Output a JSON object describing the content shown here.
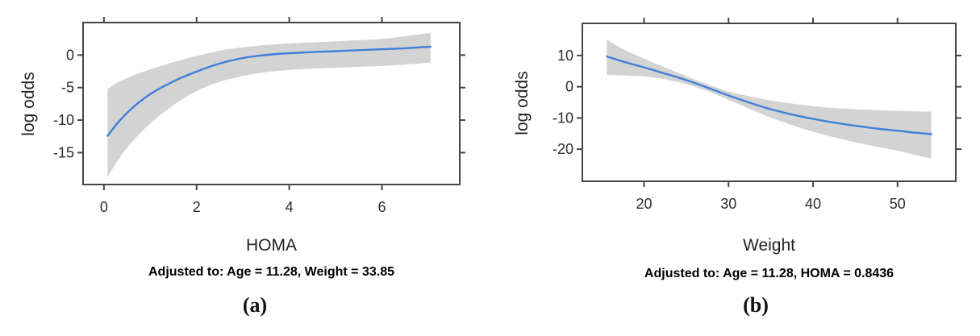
{
  "page": {
    "background": "#ffffff"
  },
  "chart_data": [
    {
      "type": "line",
      "panel_label": "(a)",
      "xlabel": "HOMA",
      "ylabel": "log odds",
      "footnote": "Adjusted to: Age = 11.28, Weight = 33.85",
      "xlim": [
        -0.45,
        7.68
      ],
      "ylim": [
        -19.9,
        5.0
      ],
      "xticks": [
        0,
        2,
        4,
        6
      ],
      "yticks": [
        0,
        -5,
        -10,
        -15
      ],
      "grid": false,
      "legend": null,
      "frame_color": "#464646",
      "series": [
        {
          "name": "log odds estimate",
          "color": "#3f80d8",
          "x": [
            0.08,
            0.3,
            0.6,
            1.0,
            1.4,
            1.8,
            2.2,
            2.6,
            3.0,
            3.4,
            3.8,
            4.2,
            4.6,
            5.0,
            5.5,
            6.0,
            6.5,
            7.05
          ],
          "y": [
            -12.4,
            -10.4,
            -8.2,
            -6.0,
            -4.4,
            -3.1,
            -2.0,
            -1.1,
            -0.45,
            -0.05,
            0.2,
            0.35,
            0.5,
            0.6,
            0.75,
            0.9,
            1.05,
            1.3
          ]
        }
      ],
      "band": {
        "name": "95% confidence band",
        "color": "#d3d3d3",
        "x": [
          0.08,
          0.3,
          0.6,
          1.0,
          1.4,
          1.8,
          2.2,
          2.6,
          3.0,
          3.4,
          3.8,
          4.2,
          4.6,
          5.0,
          5.5,
          6.0,
          6.5,
          7.05
        ],
        "upper": [
          -5.2,
          -4.2,
          -3.2,
          -2.2,
          -1.3,
          -0.5,
          0.2,
          0.8,
          1.2,
          1.5,
          1.7,
          1.85,
          2.0,
          2.1,
          2.3,
          2.5,
          2.9,
          3.4
        ],
        "lower": [
          -18.7,
          -16.2,
          -13.4,
          -10.5,
          -8.2,
          -6.3,
          -4.9,
          -3.9,
          -3.2,
          -2.7,
          -2.4,
          -2.2,
          -2.05,
          -1.95,
          -1.8,
          -1.65,
          -1.45,
          -1.15
        ]
      }
    },
    {
      "type": "line",
      "panel_label": "(b)",
      "xlabel": "Weight",
      "ylabel": "log odds",
      "footnote": "Adjusted to: Age = 11.28, HOMA = 0.8436",
      "xlim": [
        12.7,
        56.9
      ],
      "ylim": [
        -30.3,
        20.3
      ],
      "xticks": [
        20,
        30,
        40,
        50
      ],
      "yticks": [
        10,
        0,
        -10,
        -20
      ],
      "grid": false,
      "legend": null,
      "frame_color": "#464646",
      "series": [
        {
          "name": "log odds estimate",
          "color": "#3f80d8",
          "x": [
            15.6,
            17,
            18.5,
            20,
            22,
            24,
            26,
            28,
            30,
            32.5,
            35,
            37.5,
            40,
            42.5,
            45,
            47.5,
            50,
            52,
            54
          ],
          "y": [
            9.7,
            8.5,
            7.3,
            6.2,
            4.6,
            3.0,
            1.2,
            -0.8,
            -2.8,
            -5.1,
            -7.2,
            -8.9,
            -10.3,
            -11.5,
            -12.5,
            -13.4,
            -14.1,
            -14.7,
            -15.2
          ]
        }
      ],
      "band": {
        "name": "95% confidence band",
        "color": "#d3d3d3",
        "x": [
          15.6,
          17,
          18.5,
          20,
          22,
          24,
          26,
          28,
          30,
          32.5,
          35,
          37.5,
          40,
          42.5,
          45,
          47.5,
          50,
          52,
          54
        ],
        "upper": [
          15.1,
          12.8,
          10.8,
          9.0,
          6.7,
          4.5,
          2.3,
          0.3,
          -1.5,
          -3.1,
          -4.4,
          -5.4,
          -6.2,
          -6.8,
          -7.2,
          -7.5,
          -7.7,
          -7.9,
          -8.0
        ],
        "lower": [
          3.7,
          3.7,
          3.5,
          3.3,
          2.6,
          1.5,
          0.0,
          -1.9,
          -4.2,
          -7.1,
          -9.9,
          -12.3,
          -14.4,
          -16.2,
          -17.8,
          -19.2,
          -20.5,
          -21.8,
          -23.0
        ]
      }
    }
  ]
}
